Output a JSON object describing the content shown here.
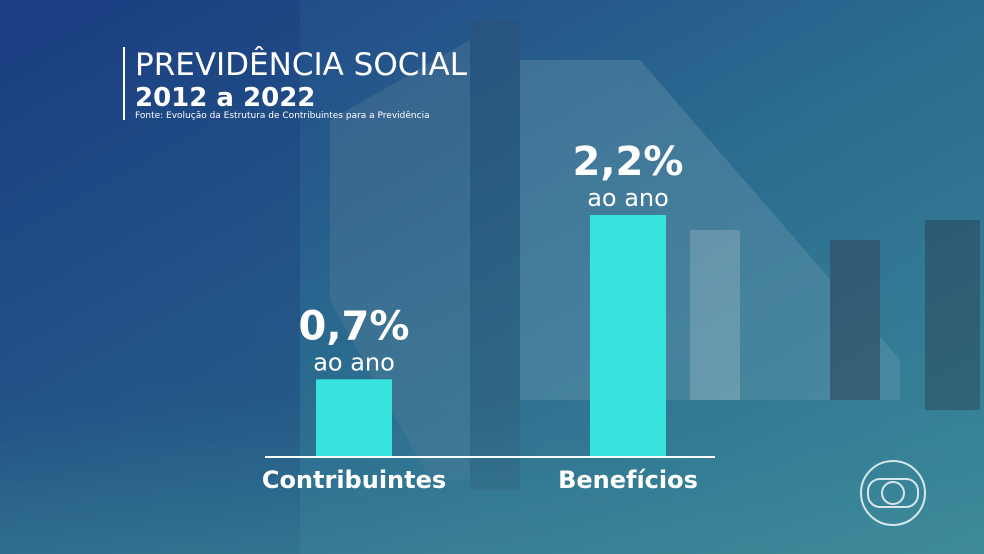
{
  "chart_data": {
    "type": "bar",
    "title": "PREVIDÊNCIA SOCIAL",
    "subtitle": "2012 a 2022",
    "source": "Fonte: Evolução da Estrutura de Contribuintes para a Previdência",
    "categories": [
      "Contribuintes",
      "Benefícios"
    ],
    "values": [
      0.7,
      2.2
    ],
    "value_labels": [
      "0,7%",
      "2,2%"
    ],
    "value_label_note": "ao ano",
    "color": "#36e3dd"
  }
}
